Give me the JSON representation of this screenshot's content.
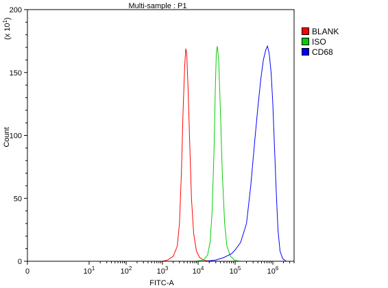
{
  "chart_data": {
    "type": "line",
    "title": "Multi-sample : P1",
    "xlabel": "FITC-A",
    "ylabel": "Count",
    "y_multiplier_label": "(x 10",
    "y_multiplier_exp": "1",
    "y_multiplier_close": ")",
    "x_scale": "biexponential-log",
    "xlim": [
      0,
      4000000
    ],
    "ylim": [
      0,
      200
    ],
    "y_ticks": [
      0,
      50,
      100,
      150,
      200
    ],
    "x_ticks": [
      {
        "label": "0",
        "value": 0
      },
      {
        "label": "10",
        "exp": "1",
        "value": 10
      },
      {
        "label": "10",
        "exp": "2",
        "value": 100
      },
      {
        "label": "10",
        "exp": "3",
        "value": 1000
      },
      {
        "label": "10",
        "exp": "4",
        "value": 10000
      },
      {
        "label": "10",
        "exp": "5",
        "value": 100000
      },
      {
        "label": "10",
        "exp": "6",
        "value": 1000000
      }
    ],
    "grid": false,
    "legend_position": "top-right",
    "series": [
      {
        "name": "BLANK",
        "color": "#ff0000",
        "points": [
          [
            1000,
            0
          ],
          [
            1400,
            1
          ],
          [
            2000,
            4
          ],
          [
            2600,
            12
          ],
          [
            3000,
            30
          ],
          [
            3400,
            70
          ],
          [
            3800,
            120
          ],
          [
            4200,
            155
          ],
          [
            4500,
            169
          ],
          [
            4800,
            165
          ],
          [
            5200,
            140
          ],
          [
            5800,
            95
          ],
          [
            6500,
            50
          ],
          [
            7500,
            22
          ],
          [
            9000,
            8
          ],
          [
            11000,
            3
          ],
          [
            14000,
            1
          ],
          [
            20000,
            0
          ]
        ]
      },
      {
        "name": "ISO",
        "color": "#00cc00",
        "points": [
          [
            9000,
            0
          ],
          [
            14000,
            1
          ],
          [
            18000,
            5
          ],
          [
            21000,
            15
          ],
          [
            24000,
            40
          ],
          [
            27000,
            90
          ],
          [
            29000,
            135
          ],
          [
            31000,
            165
          ],
          [
            33000,
            171
          ],
          [
            36000,
            160
          ],
          [
            40000,
            120
          ],
          [
            45000,
            70
          ],
          [
            52000,
            30
          ],
          [
            60000,
            12
          ],
          [
            75000,
            4
          ],
          [
            95000,
            1
          ],
          [
            130000,
            0
          ]
        ]
      },
      {
        "name": "CD68",
        "color": "#0000ff",
        "points": [
          [
            15000,
            0
          ],
          [
            30000,
            1
          ],
          [
            50000,
            3
          ],
          [
            80000,
            6
          ],
          [
            100000,
            9
          ],
          [
            140000,
            15
          ],
          [
            200000,
            30
          ],
          [
            260000,
            60
          ],
          [
            330000,
            95
          ],
          [
            400000,
            122
          ],
          [
            480000,
            145
          ],
          [
            560000,
            160
          ],
          [
            650000,
            168
          ],
          [
            720000,
            171
          ],
          [
            800000,
            165
          ],
          [
            900000,
            150
          ],
          [
            1000000,
            125
          ],
          [
            1100000,
            95
          ],
          [
            1250000,
            55
          ],
          [
            1400000,
            25
          ],
          [
            1600000,
            8
          ],
          [
            1900000,
            2
          ],
          [
            2400000,
            0
          ]
        ]
      }
    ]
  }
}
